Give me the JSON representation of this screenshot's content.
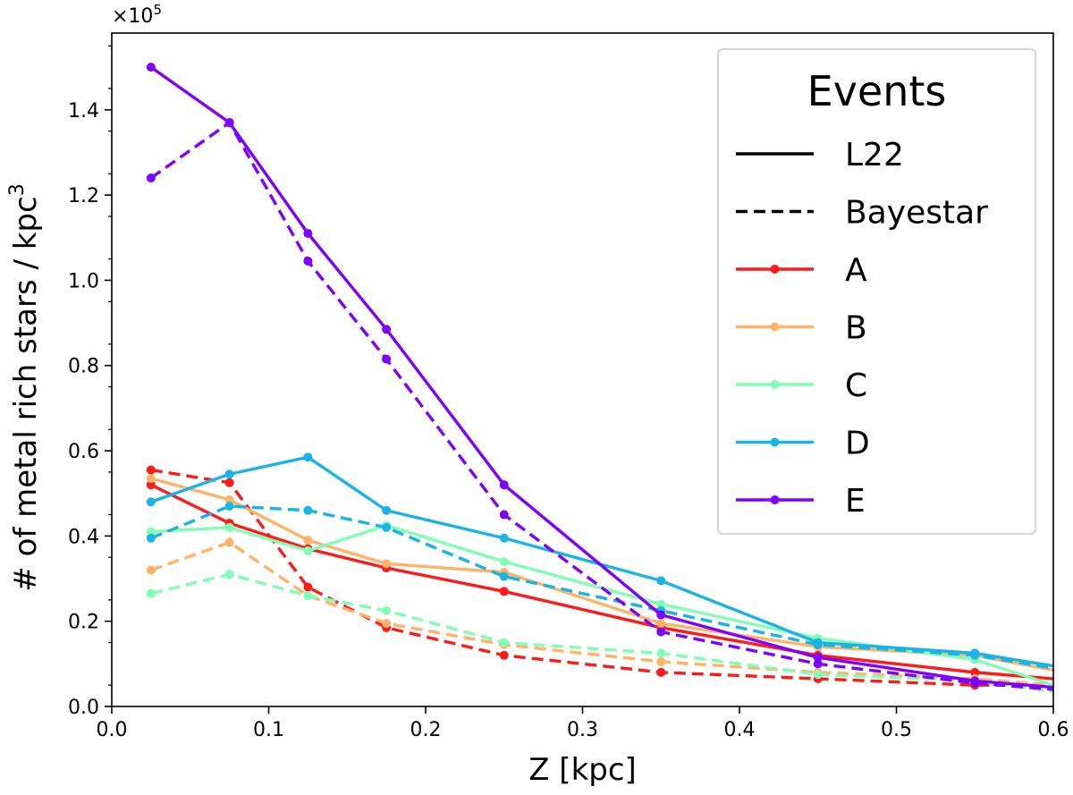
{
  "chart_data": {
    "type": "line",
    "title": "",
    "xlabel": "Z [kpc]",
    "ylabel": "# of metal rich stars / kpc",
    "ylabel_superscript": "3",
    "y_scale_mantissa": "×10",
    "y_scale_exponent": "5",
    "xlim": [
      0.0,
      0.6
    ],
    "ylim": [
      0.0,
      1.58
    ],
    "x_ticks": [
      0.0,
      0.1,
      0.2,
      0.3,
      0.4,
      0.5,
      0.6
    ],
    "x_tick_labels": [
      "0.0",
      "0.1",
      "0.2",
      "0.3",
      "0.4",
      "0.5",
      "0.6"
    ],
    "y_ticks": [
      0.0,
      0.2,
      0.4,
      0.6,
      0.8,
      1.0,
      1.2,
      1.4
    ],
    "y_tick_labels": [
      "0.0",
      "0.2",
      "0.4",
      "0.6",
      "0.8",
      "1.0",
      "1.2",
      "1.4"
    ],
    "x": [
      0.025,
      0.075,
      0.125,
      0.175,
      0.25,
      0.35,
      0.45,
      0.55,
      0.6
    ],
    "legend": {
      "title": "Events",
      "placement": "top-right",
      "style_entries": [
        {
          "label": "L22",
          "dash": "solid"
        },
        {
          "label": "Bayestar",
          "dash": "dashed"
        }
      ],
      "event_entries": [
        "A",
        "B",
        "C",
        "D",
        "E"
      ]
    },
    "series": [
      {
        "name": "A",
        "style": "L22",
        "color": "#ff1a1a",
        "values": [
          0.52,
          0.43,
          0.37,
          0.325,
          0.27,
          0.185,
          0.12,
          0.08,
          0.065
        ]
      },
      {
        "name": "A",
        "style": "Bayestar",
        "color": "#ff1a1a",
        "values": [
          0.555,
          0.525,
          0.28,
          0.185,
          0.12,
          0.08,
          0.065,
          0.05,
          0.05
        ]
      },
      {
        "name": "B",
        "style": "L22",
        "color": "#ffb366",
        "values": [
          0.535,
          0.485,
          0.39,
          0.335,
          0.315,
          0.195,
          0.14,
          0.12,
          0.085
        ]
      },
      {
        "name": "B",
        "style": "Bayestar",
        "color": "#ffb366",
        "values": [
          0.32,
          0.385,
          0.26,
          0.195,
          0.145,
          0.105,
          0.08,
          0.065,
          0.05
        ]
      },
      {
        "name": "C",
        "style": "L22",
        "color": "#80ffb4",
        "values": [
          0.41,
          0.42,
          0.365,
          0.425,
          0.34,
          0.24,
          0.16,
          0.11,
          0.05
        ]
      },
      {
        "name": "C",
        "style": "Bayestar",
        "color": "#80ffb4",
        "values": [
          0.265,
          0.31,
          0.26,
          0.225,
          0.15,
          0.125,
          0.075,
          0.06,
          0.035
        ]
      },
      {
        "name": "D",
        "style": "L22",
        "color": "#19b4e6",
        "values": [
          0.48,
          0.545,
          0.585,
          0.46,
          0.395,
          0.295,
          0.15,
          0.125,
          0.095
        ]
      },
      {
        "name": "D",
        "style": "Bayestar",
        "color": "#19b4e6",
        "values": [
          0.395,
          0.47,
          0.46,
          0.42,
          0.305,
          0.225,
          0.145,
          0.12,
          0.09
        ]
      },
      {
        "name": "E",
        "style": "L22",
        "color": "#8000ff",
        "values": [
          1.5,
          1.37,
          1.11,
          0.885,
          0.52,
          0.215,
          0.115,
          0.06,
          0.045
        ]
      },
      {
        "name": "E",
        "style": "Bayestar",
        "color": "#8000ff",
        "values": [
          1.24,
          1.37,
          1.045,
          0.815,
          0.45,
          0.175,
          0.1,
          0.055,
          0.04
        ]
      }
    ]
  }
}
